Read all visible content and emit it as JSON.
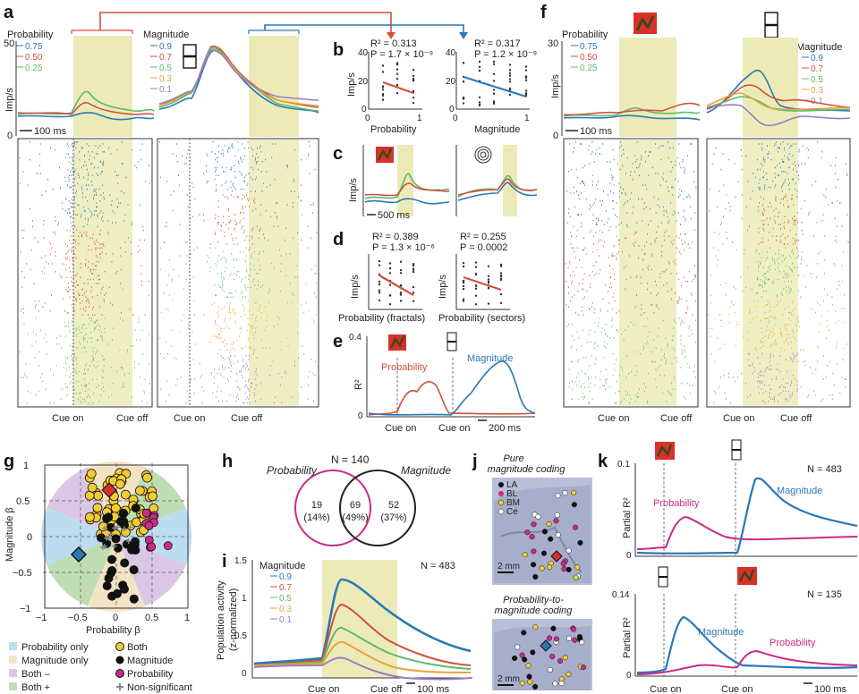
{
  "colors": {
    "blue": "#2a78b5",
    "red": "#d2503c",
    "green": "#5cba6a",
    "orange": "#e8a33a",
    "purple": "#9b7cc2",
    "magenta": "#cc2a8a",
    "shade": "#ecebb8",
    "prob_only": "#bcdcf0",
    "mag_only": "#f3e3c6",
    "both_minus": "#dcc6e6",
    "both_plus": "#bfddb4",
    "both_dot": "#f2cc32"
  },
  "panel_labels": [
    "a",
    "b",
    "c",
    "d",
    "e",
    "f",
    "g",
    "h",
    "i",
    "j",
    "k"
  ],
  "a": {
    "prob_title": "Probability",
    "prob_legend": [
      "0.75",
      "0.50",
      "0.25"
    ],
    "mag_title": "Magnitude",
    "mag_legend": [
      "0.9",
      "0.7",
      "0.5",
      "0.3",
      "0.1"
    ],
    "y_axis": "Imp/s",
    "y_ticks": [
      "50",
      "0"
    ],
    "scale_bar": "100 ms",
    "x_left": [
      "Cue on",
      "Cue off"
    ],
    "x_right": [
      "Cue on",
      "Cue off"
    ]
  },
  "b": {
    "left_stats": [
      "R² = 0.313",
      "P = 1.7 × 10⁻⁹"
    ],
    "right_stats": [
      "R² = 0.317",
      "P = 1.2 × 10⁻⁹"
    ],
    "y_axis": "Imp/s",
    "y_ticks": [
      "40",
      "20",
      "0"
    ],
    "x_ticks": [
      "0",
      "1"
    ],
    "left_x": "Probability",
    "right_x": "Magnitude"
  },
  "c": {
    "y_axis": "Imp/s",
    "scale_bar": "500 ms"
  },
  "d": {
    "left_stats": [
      "R² = 0.389",
      "P = 1.3 × 10⁻⁶"
    ],
    "right_stats": [
      "R² = 0.255",
      "P = 0.0002"
    ],
    "y_axis": "Imp/s",
    "left_x": "Probability (fractals)",
    "right_x": "Probability (sectors)"
  },
  "e": {
    "y_axis": "R²",
    "y_ticks": [
      "0.4",
      "0"
    ],
    "prob_label": "Probability",
    "mag_label": "Magnitude",
    "x_labels": [
      "Cue on",
      "Cue on",
      "200 ms"
    ]
  },
  "f": {
    "prob_title": "Probability",
    "prob_legend": [
      "0.75",
      "0.50",
      "0.25"
    ],
    "mag_title": "Magnitude",
    "mag_legend": [
      "0.9",
      "0.7",
      "0.5",
      "0.3",
      "0.1"
    ],
    "y_axis": "Imp/s",
    "y_ticks": [
      "30",
      "0"
    ],
    "scale_bar": "100 ms",
    "x_left": [
      "Cue on",
      "Cue off"
    ],
    "x_right": [
      "Cue on",
      "Cue off"
    ]
  },
  "g": {
    "y_axis": "Magnitude β",
    "x_axis": "Probability β",
    "x_ticks": [
      "−1",
      "−0.5",
      "0",
      "0.5",
      "1"
    ],
    "y_ticks": [
      "1",
      "0.5",
      "0",
      "−0.5",
      "−1"
    ],
    "legend_left": [
      "Probability only",
      "Magnitude only",
      "Both –",
      "Both +"
    ],
    "legend_right": [
      "Both",
      "Magnitude",
      "Probability",
      "Non-significant"
    ]
  },
  "h": {
    "n": "N = 140",
    "left_title": "Probability",
    "right_title": "Magnitude",
    "left_count": "19",
    "left_pct": "(14%)",
    "mid_count": "69",
    "mid_pct": "(49%)",
    "right_count": "52",
    "right_pct": "(37%)"
  },
  "i": {
    "title": "Magnitude",
    "legend": [
      "0.9",
      "0.7",
      "0.5",
      "0.3",
      "0.1"
    ],
    "n": "N = 483",
    "y_axis": [
      "Population activity",
      "(z-normalized)"
    ],
    "y_ticks": [
      "1.5",
      "1",
      "0.5",
      "0"
    ],
    "x_labels": [
      "Cue on",
      "Cue off",
      "100 ms"
    ]
  },
  "j": {
    "top_title": [
      "Pure",
      "magnitude coding"
    ],
    "bottom_title": [
      "Probability-to-",
      "magnitude coding"
    ],
    "legend": [
      "LA",
      "BL",
      "BM",
      "Ce"
    ],
    "scale": "2 mm"
  },
  "k": {
    "top_n": "N = 483",
    "bottom_n": "N = 135",
    "y_axis": "Partial R²",
    "top_ticks": [
      "0.1",
      "0"
    ],
    "bottom_ticks": [
      "0.14",
      "0"
    ],
    "prob_label": "Probability",
    "mag_label": "Magnitude",
    "x_labels": [
      "Cue on",
      "Cue on",
      "100 ms"
    ]
  }
}
